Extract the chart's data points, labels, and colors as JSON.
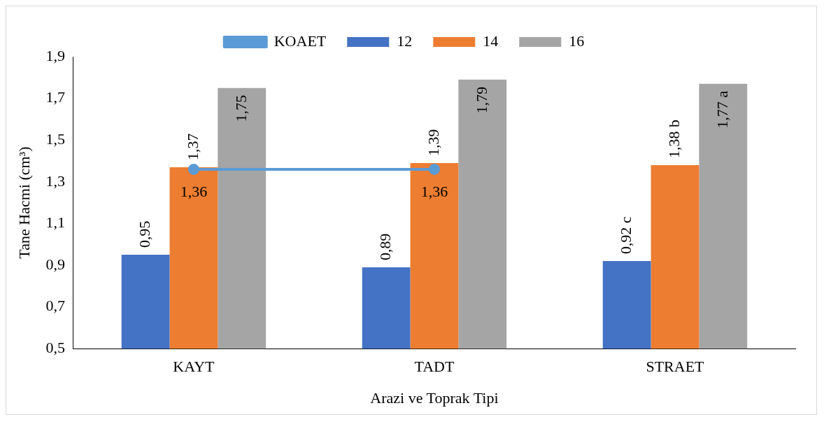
{
  "chart_data": {
    "type": "bar",
    "xlabel": "Arazi ve Toprak Tipi",
    "ylabel": "Tane Hacmi (cm³)",
    "categories": [
      "KAYT",
      "TADT",
      "STRAET"
    ],
    "series": [
      {
        "name": "12",
        "color": "#4472c4",
        "values": [
          0.95,
          0.89,
          0.92
        ],
        "value_labels": [
          "0,95",
          "0,89",
          "0,92 c"
        ]
      },
      {
        "name": "14",
        "color": "#ed7d31",
        "values": [
          1.37,
          1.39,
          1.38
        ],
        "value_labels": [
          "1,37",
          "1,39",
          "1,38 b"
        ]
      },
      {
        "name": "16",
        "color": "#a5a5a5",
        "values": [
          1.75,
          1.79,
          1.77
        ],
        "value_labels": [
          "1,75",
          "1,79",
          "1,77 a"
        ]
      },
      {
        "name": "KOAET",
        "type": "line",
        "color": "#5b9bd5",
        "values": [
          1.36,
          1.36,
          null
        ],
        "value_labels": [
          "1,36",
          "1,36",
          null
        ]
      }
    ],
    "ylim": [
      0.5,
      1.9
    ],
    "yticks": [
      {
        "value": 0.5,
        "label": "0,5"
      },
      {
        "value": 0.7,
        "label": "0,7"
      },
      {
        "value": 0.9,
        "label": "0,9"
      },
      {
        "value": 1.1,
        "label": "1,1"
      },
      {
        "value": 1.3,
        "label": "1,3"
      },
      {
        "value": 1.5,
        "label": "1,5"
      },
      {
        "value": 1.7,
        "label": "1,7"
      },
      {
        "value": 1.9,
        "label": "1,9"
      }
    ],
    "grid": false,
    "legend": "top",
    "marker": "circle"
  }
}
